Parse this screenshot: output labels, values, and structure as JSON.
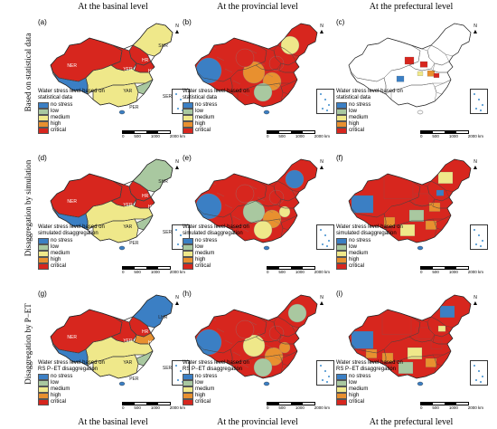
{
  "columns_top": [
    "At the basinal level",
    "At the provincial level",
    "At the prefectural level"
  ],
  "columns_bottom": [
    "At the basinal level",
    "At the provincial level",
    "At the prefectural level"
  ],
  "rows": [
    "Based on statistical data",
    "Disaggregation by simulation",
    "Disaggregation by P−ET"
  ],
  "panel_labels": [
    "(a)",
    "(b)",
    "(c)",
    "(d)",
    "(e)",
    "(f)",
    "(g)",
    "(h)",
    "(i)"
  ],
  "legend_titles": [
    "Water stress level based on statistical data",
    "Water stress level based on statistical data",
    "Water stress level based on statistical data",
    "Water stress level based on simulated disaggregation",
    "Water stress level based on simulated disaggregation",
    "Water stress level based on simulated disaggregation",
    "Water stress level based on RS P−ET disaggregation",
    "Water stress level based on RS P−ET disaggregation",
    "Water stress level based on RS P−ET disaggregation"
  ],
  "legend_items": [
    {
      "label": "no stress",
      "color": "#3b7fc4"
    },
    {
      "label": "low",
      "color": "#a9c8a0"
    },
    {
      "label": "medium",
      "color": "#efe88a"
    },
    {
      "label": "high",
      "color": "#e8902f"
    },
    {
      "label": "critical",
      "color": "#d7261e"
    }
  ],
  "scale_ticks": [
    "0",
    "500",
    "1000",
    "2000 km"
  ],
  "north_label": "N",
  "basins": [
    "NER",
    "YER",
    "HR",
    "HUR",
    "SHR",
    "SWR",
    "YAR",
    "PER",
    "SER",
    "LHR"
  ],
  "basin_panels": [
    {
      "NER": "NER",
      "YER": "YER",
      "HR": "HR",
      "HUR": "HUR",
      "SHR": "SHR",
      "SWR": "SWR",
      "YAR": "YAR",
      "PER": "PER",
      "SER": "SER"
    },
    {
      "NER": "NER",
      "YER": "YER",
      "HR": "HR",
      "HUR": "HUR",
      "SHR": "SHR",
      "SWR": "SWR",
      "YAR": "YAR",
      "PER": "PER",
      "SER": "SER"
    },
    {
      "NER": "NER",
      "YER": "YER",
      "HR": "HR",
      "HUR": "HUR",
      "SHR": "LHR",
      "SWR": "SWR",
      "YAR": "YAR",
      "PER": "PER",
      "SER": "SER"
    }
  ]
}
